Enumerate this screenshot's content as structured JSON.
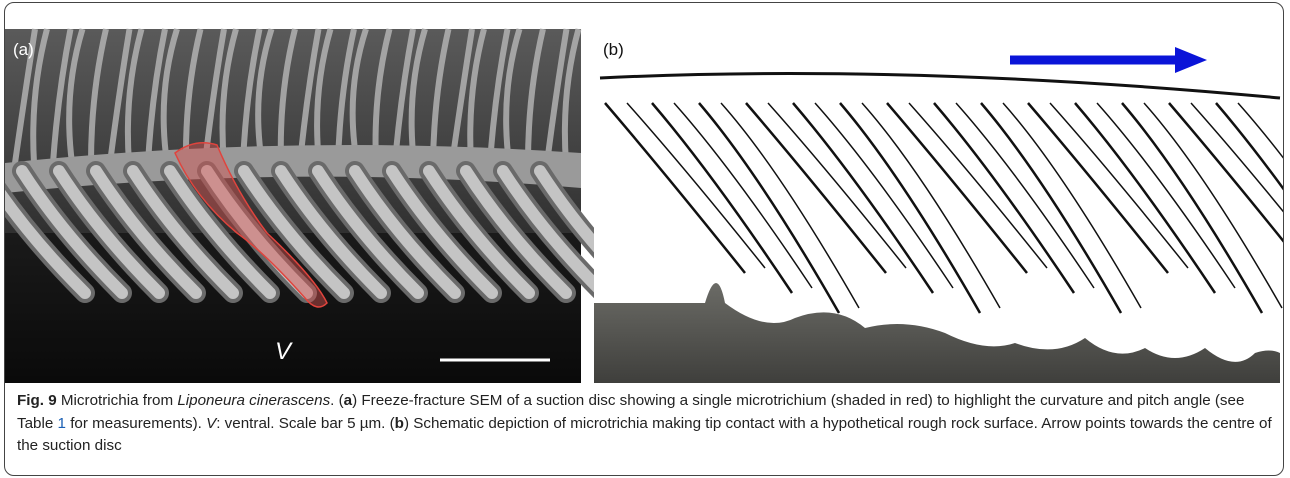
{
  "figure": {
    "panel_a": {
      "label": "(a)",
      "annotation": "V"
    },
    "panel_b": {
      "label": "(b)"
    },
    "caption": {
      "segments": [
        "Fig. 9",
        " Microtrichia from ",
        "Liponeura cinerascens",
        ". (",
        "a",
        ") Freeze-fracture SEM of a suction disc showing a single microtrichium (shaded in red) to highlight the curvature and pitch angle (see Table ",
        "1",
        " for measurements). ",
        "V",
        ": ventral. Scale bar 5 µm. (",
        "b",
        ") Schematic depiction of microtrichia making tip contact with a hypothetical rough rock surface. Arrow points towards the centre of the suction disc"
      ]
    }
  }
}
